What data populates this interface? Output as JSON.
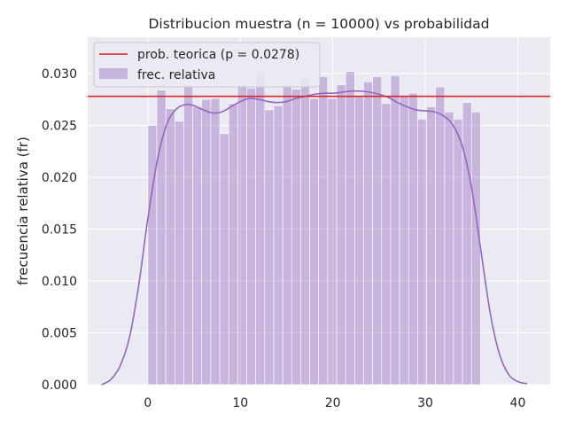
{
  "chart_data": {
    "type": "bar",
    "title": "Distribucion muestra (n = 10000) vs probabilidad",
    "xlabel": "",
    "ylabel": "frecuencia relativa (fr)",
    "xlim": [
      -6.5,
      43.5
    ],
    "ylim": [
      0,
      0.0335
    ],
    "xticks": [
      0,
      10,
      20,
      30,
      40
    ],
    "yticks": [
      0.0,
      0.005,
      0.01,
      0.015,
      0.02,
      0.025,
      0.03
    ],
    "xtick_labels": [
      "0",
      "10",
      "20",
      "30",
      "40"
    ],
    "ytick_labels": [
      "0.000",
      "0.005",
      "0.010",
      "0.015",
      "0.020",
      "0.025",
      "0.030"
    ],
    "grid": true,
    "legend_position": "top-left",
    "bar_color": "#9467bd",
    "line_color": "#d62728",
    "background_color": "#eaeaf2",
    "bins": {
      "left_edges": [
        0.0,
        0.972,
        1.944,
        2.917,
        3.889,
        4.861,
        5.833,
        6.806,
        7.778,
        8.75,
        9.722,
        10.694,
        11.667,
        12.639,
        13.611,
        14.583,
        15.556,
        16.528,
        17.5,
        18.472,
        19.444,
        20.417,
        21.389,
        22.361,
        23.333,
        24.306,
        25.278,
        26.25,
        27.222,
        28.194,
        29.167,
        30.139,
        31.111,
        32.083,
        33.056,
        34.028,
        35.0
      ],
      "width": 0.972,
      "values": [
        0.025,
        0.0284,
        0.0266,
        0.0254,
        0.0287,
        0.0268,
        0.0275,
        0.0276,
        0.0242,
        0.0271,
        0.0289,
        0.0286,
        0.0302,
        0.0265,
        0.0269,
        0.0289,
        0.0285,
        0.0295,
        0.0276,
        0.0297,
        0.0276,
        0.0289,
        0.0302,
        0.0278,
        0.0292,
        0.0297,
        0.0271,
        0.0298,
        0.0278,
        0.0281,
        0.0256,
        0.0268,
        0.0287,
        0.0263,
        0.0256,
        0.0272,
        0.0263
      ]
    },
    "kde": {
      "x": [
        -5,
        -4,
        -3,
        -2,
        -1,
        0,
        1,
        2,
        3,
        4,
        5,
        6,
        7,
        8,
        9,
        10,
        11,
        12,
        13,
        14,
        15,
        16,
        17,
        18,
        19,
        20,
        21,
        22,
        23,
        24,
        25,
        26,
        27,
        28,
        29,
        30,
        31,
        32,
        33,
        34,
        35,
        36,
        37,
        38,
        39,
        40,
        41
      ],
      "y": [
        0.0,
        0.0005,
        0.0018,
        0.0045,
        0.0095,
        0.016,
        0.0215,
        0.025,
        0.0265,
        0.027,
        0.0269,
        0.0265,
        0.0262,
        0.0263,
        0.0268,
        0.0273,
        0.0276,
        0.0275,
        0.0273,
        0.0272,
        0.0273,
        0.0276,
        0.0278,
        0.028,
        0.0281,
        0.0281,
        0.0282,
        0.0283,
        0.0283,
        0.0282,
        0.028,
        0.0277,
        0.0272,
        0.0268,
        0.0265,
        0.0264,
        0.0263,
        0.0259,
        0.025,
        0.023,
        0.019,
        0.013,
        0.007,
        0.003,
        0.001,
        0.0003,
        0.0001
      ]
    },
    "series": [
      {
        "name": "prob. teorica (p = 0.0278)",
        "type": "hline",
        "value": 0.0278
      },
      {
        "name": "frec. relativa",
        "type": "histogram"
      }
    ]
  }
}
